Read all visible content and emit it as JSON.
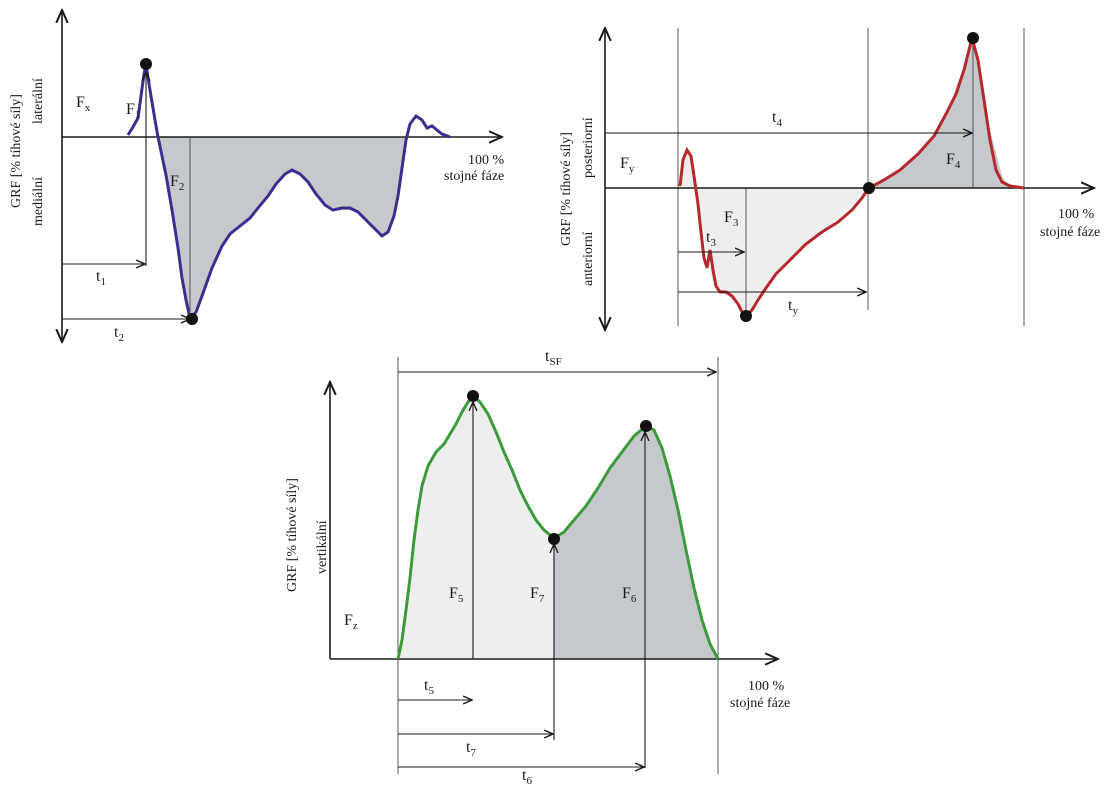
{
  "panel_x": {
    "force_label": "F",
    "force_sub": "x",
    "ylabel": "GRF [% tíhové síly]",
    "dir_upper": "laterální",
    "dir_lower": "mediální",
    "unit_line1": "100 %",
    "unit_line2": "stojné fáze",
    "f1": {
      "main": "F",
      "sub": "1"
    },
    "f2": {
      "main": "F",
      "sub": "2"
    },
    "t1": {
      "main": "t",
      "sub": "1"
    },
    "t2": {
      "main": "t",
      "sub": "2"
    },
    "curve_color": "#3b2e8f",
    "fill_color": "#c6c9cb"
  },
  "panel_y": {
    "force_label": "F",
    "force_sub": "y",
    "ylabel": "GRF [% tíhové síly]",
    "dir_upper": "posteriorní",
    "dir_lower": "anteriorní",
    "unit_line1": "100 %",
    "unit_line2": "stojné fáze",
    "f3": {
      "main": "F",
      "sub": "3"
    },
    "f4": {
      "main": "F",
      "sub": "4"
    },
    "t3": {
      "main": "t",
      "sub": "3"
    },
    "t4": {
      "main": "t",
      "sub": "4"
    },
    "ty": {
      "main": "t",
      "sub": "y"
    },
    "curve_color": "#b5282c",
    "fill_color": "#c6c9cb"
  },
  "panel_z": {
    "force_label": "F",
    "force_sub": "z",
    "ylabel": "GRF [% tíhové síly]",
    "dir_upper": "vertikální",
    "unit_line1": "100 %",
    "unit_line2": "stojné fáze",
    "f5": {
      "main": "F",
      "sub": "5"
    },
    "f6": {
      "main": "F",
      "sub": "6"
    },
    "f7": {
      "main": "F",
      "sub": "7"
    },
    "t5": {
      "main": "t",
      "sub": "5"
    },
    "t6": {
      "main": "t",
      "sub": "6"
    },
    "t7": {
      "main": "t",
      "sub": "7"
    },
    "tsf": {
      "main": "t",
      "sub": "SF"
    },
    "curve_color": "#3c9a3c",
    "fill_color": "#c6c9cb"
  }
}
